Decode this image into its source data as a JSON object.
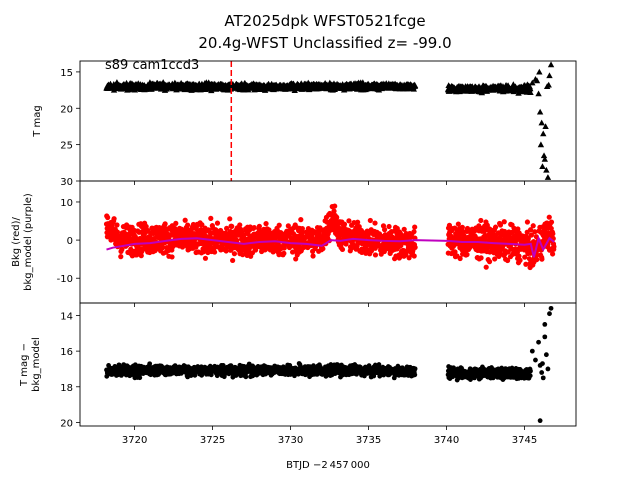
{
  "title": {
    "line1": "AT2025dpk  WFST0521fcge",
    "line2": "20.4g-WFST Unclassified z= -99.0"
  },
  "xlabel": "BTJD −2 457 000",
  "colors": {
    "data": "#000000",
    "bkg_red": "#ff0000",
    "bkg_model": "#bf00bf",
    "marker_line": "#ff0000"
  },
  "chart_data": [
    {
      "type": "scatter",
      "panel": "top",
      "ylabel": "T mag",
      "annotation": "s89 cam1ccd3",
      "xlim": [
        3716.5,
        3748.3
      ],
      "ylim": [
        30.0,
        13.5
      ],
      "y_inverted": true,
      "yticks": [
        15,
        20,
        25,
        30
      ],
      "marker": "triangle",
      "vertical_line_x": 3726.2,
      "segments": [
        {
          "x": [
            3718.2,
            3738.0
          ],
          "y_center": 17.0,
          "y_spread": 0.8
        },
        {
          "x": [
            3740.1,
            3745.4
          ],
          "y_center": 17.3,
          "y_spread": 0.8
        }
      ],
      "outliers": {
        "x": [
          3745.2,
          3745.5,
          3745.7,
          3745.9,
          3746.0,
          3746.1,
          3746.2,
          3746.3,
          3746.4,
          3746.5,
          3746.6,
          3746.7,
          3745.8,
          3746.05,
          3746.25,
          3746.45,
          3745.95,
          3746.15,
          3746.35,
          3746.55
        ],
        "y": [
          17.5,
          16.5,
          16.0,
          18.0,
          20.5,
          22.0,
          23.5,
          27.0,
          28.5,
          29.5,
          15.5,
          14.0,
          16.2,
          25.0,
          26.5,
          17.0,
          15.0,
          28.0,
          22.5,
          16.8
        ]
      }
    },
    {
      "type": "scatter",
      "panel": "middle",
      "ylabel": "Bkg (red)/\nbkg_model (purple)",
      "xlim": [
        3716.5,
        3748.3
      ],
      "ylim": [
        -16.5,
        15.5
      ],
      "yticks": [
        10,
        0,
        -10
      ],
      "series": [
        {
          "name": "Bkg",
          "color": "#ff0000",
          "segments": [
            {
              "x": [
                3718.2,
                3738.0
              ],
              "center": [
                [
                  3718.2,
                  4.0
                ],
                [
                  3719.0,
                  0.0
                ],
                [
                  3722.0,
                  0.5
                ],
                [
                  3726.0,
                  0.0
                ],
                [
                  3729.0,
                  0.0
                ],
                [
                  3732.0,
                  0.0
                ],
                [
                  3732.7,
                  6.0
                ],
                [
                  3733.3,
                  1.0
                ],
                [
                  3735.0,
                  0.0
                ],
                [
                  3738.0,
                  -1.0
                ]
              ],
              "spread": 4.0
            },
            {
              "x": [
                3740.1,
                3746.9
              ],
              "center": [
                [
                  3740.1,
                  0.0
                ],
                [
                  3743.0,
                  -0.5
                ],
                [
                  3745.0,
                  -1.0
                ],
                [
                  3745.6,
                  -3.0
                ],
                [
                  3746.5,
                  2.0
                ],
                [
                  3746.9,
                  0.0
                ]
              ],
              "spread": 4.5
            }
          ]
        }
      ],
      "model": {
        "name": "bkg_model",
        "color": "#bf00bf",
        "x": [
          3718.2,
          3718.6,
          3719.3,
          3720.0,
          3721.0,
          3722.0,
          3723.0,
          3724.0,
          3725.0,
          3726.0,
          3727.0,
          3728.0,
          3729.0,
          3730.0,
          3731.0,
          3732.0,
          3732.6,
          3733.2,
          3734.0,
          3735.0,
          3736.0,
          3737.0,
          3738.0,
          3740.1,
          3741.0,
          3742.0,
          3743.0,
          3744.0,
          3745.0,
          3745.4,
          3745.6,
          3745.9,
          3746.2,
          3746.6,
          3746.9
        ],
        "y": [
          -2.5,
          -2.0,
          -1.5,
          -1.0,
          -0.8,
          -0.2,
          0.3,
          0.5,
          0.0,
          -0.5,
          -1.0,
          -0.5,
          -0.3,
          -0.8,
          -1.0,
          -1.5,
          0.0,
          -0.2,
          0.3,
          0.0,
          -0.2,
          -0.3,
          0.0,
          -0.2,
          -0.5,
          -0.5,
          -0.8,
          -1.0,
          -1.2,
          -1.0,
          -4.5,
          0.5,
          -2.5,
          0.5,
          -0.5
        ]
      }
    },
    {
      "type": "scatter",
      "panel": "bottom",
      "ylabel": "T mag −\nbkg_model",
      "xlabel": "BTJD −2 457 000",
      "xlim": [
        3716.5,
        3748.3
      ],
      "ylim": [
        20.2,
        13.3
      ],
      "y_inverted": true,
      "yticks": [
        14,
        16,
        18,
        20
      ],
      "xticks": [
        3720,
        3725,
        3730,
        3735,
        3740,
        3745
      ],
      "segments": [
        {
          "x": [
            3718.2,
            3738.0
          ],
          "y_center": 17.1,
          "y_spread": 0.5
        },
        {
          "x": [
            3740.1,
            3745.4
          ],
          "y_center": 17.25,
          "y_spread": 0.5
        }
      ],
      "outliers": {
        "x": [
          3745.5,
          3745.7,
          3745.9,
          3746.0,
          3746.1,
          3746.2,
          3746.3,
          3746.4,
          3746.5,
          3746.6,
          3746.7,
          3746.0,
          3746.3,
          3746.15
        ],
        "y": [
          16.0,
          16.5,
          15.5,
          16.8,
          17.2,
          17.5,
          14.5,
          16.2,
          17.0,
          13.9,
          13.6,
          19.9,
          15.2,
          16.7
        ]
      }
    }
  ]
}
